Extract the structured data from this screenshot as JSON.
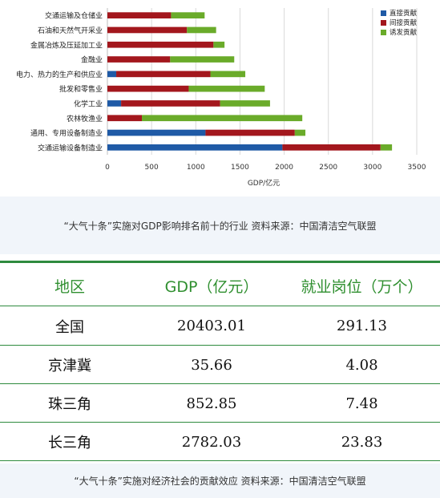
{
  "chart_data": {
    "type": "bar",
    "orientation": "horizontal",
    "stacked": true,
    "categories": [
      "交通运输设备制造业",
      "通用、专用设备制造业",
      "农林牧渔业",
      "化学工业",
      "批发和零售业",
      "电力、热力的生产和供应业",
      "金融业",
      "金属冶炼及压延加工业",
      "石油和天然气开采业",
      "交通运输及仓储业"
    ],
    "series": [
      {
        "name": "直接贡献",
        "color": "#1f5aa6",
        "values": [
          1980,
          1110,
          0,
          155,
          0,
          100,
          0,
          0,
          0,
          0
        ]
      },
      {
        "name": "间接贡献",
        "color": "#a3171d",
        "values": [
          1110,
          1010,
          390,
          1120,
          920,
          1065,
          710,
          1200,
          900,
          720
        ]
      },
      {
        "name": "诱发贡献",
        "color": "#6aab2a",
        "values": [
          130,
          120,
          1815,
          565,
          860,
          395,
          725,
          125,
          330,
          380
        ]
      }
    ],
    "xlabel": "GDP/亿元",
    "xlim": [
      0,
      3500
    ],
    "xticks": [
      0,
      500,
      1000,
      1500,
      2000,
      2500,
      3000,
      3500
    ],
    "grid": "vertical",
    "legend": "top-right"
  },
  "captions": {
    "chart": "“大气十条”实施对GDP影响排名前十的行业 资料来源：中国清洁空气联盟",
    "table": "“大气十条”实施对经济社会的贡献效应 资料来源：中国清洁空气联盟"
  },
  "table": {
    "headers": [
      "地区",
      "GDP（亿元）",
      "就业岗位（万个）"
    ],
    "rows": [
      [
        "全国",
        "20403.01",
        "291.13"
      ],
      [
        "京津冀",
        "35.66",
        "4.08"
      ],
      [
        "珠三角",
        "852.85",
        "7.48"
      ],
      [
        "长三角",
        "2782.03",
        "23.83"
      ]
    ]
  }
}
